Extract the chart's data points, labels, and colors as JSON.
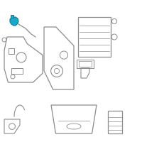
{
  "bg_color": "#ffffff",
  "fig_width": 2.0,
  "fig_height": 2.0,
  "dpi": 100,
  "highlight_color": "#1aa8c8",
  "highlight_edge": "#0d7a96",
  "line_color": "#8c8c8c",
  "dark_line": "#4a4a4a"
}
